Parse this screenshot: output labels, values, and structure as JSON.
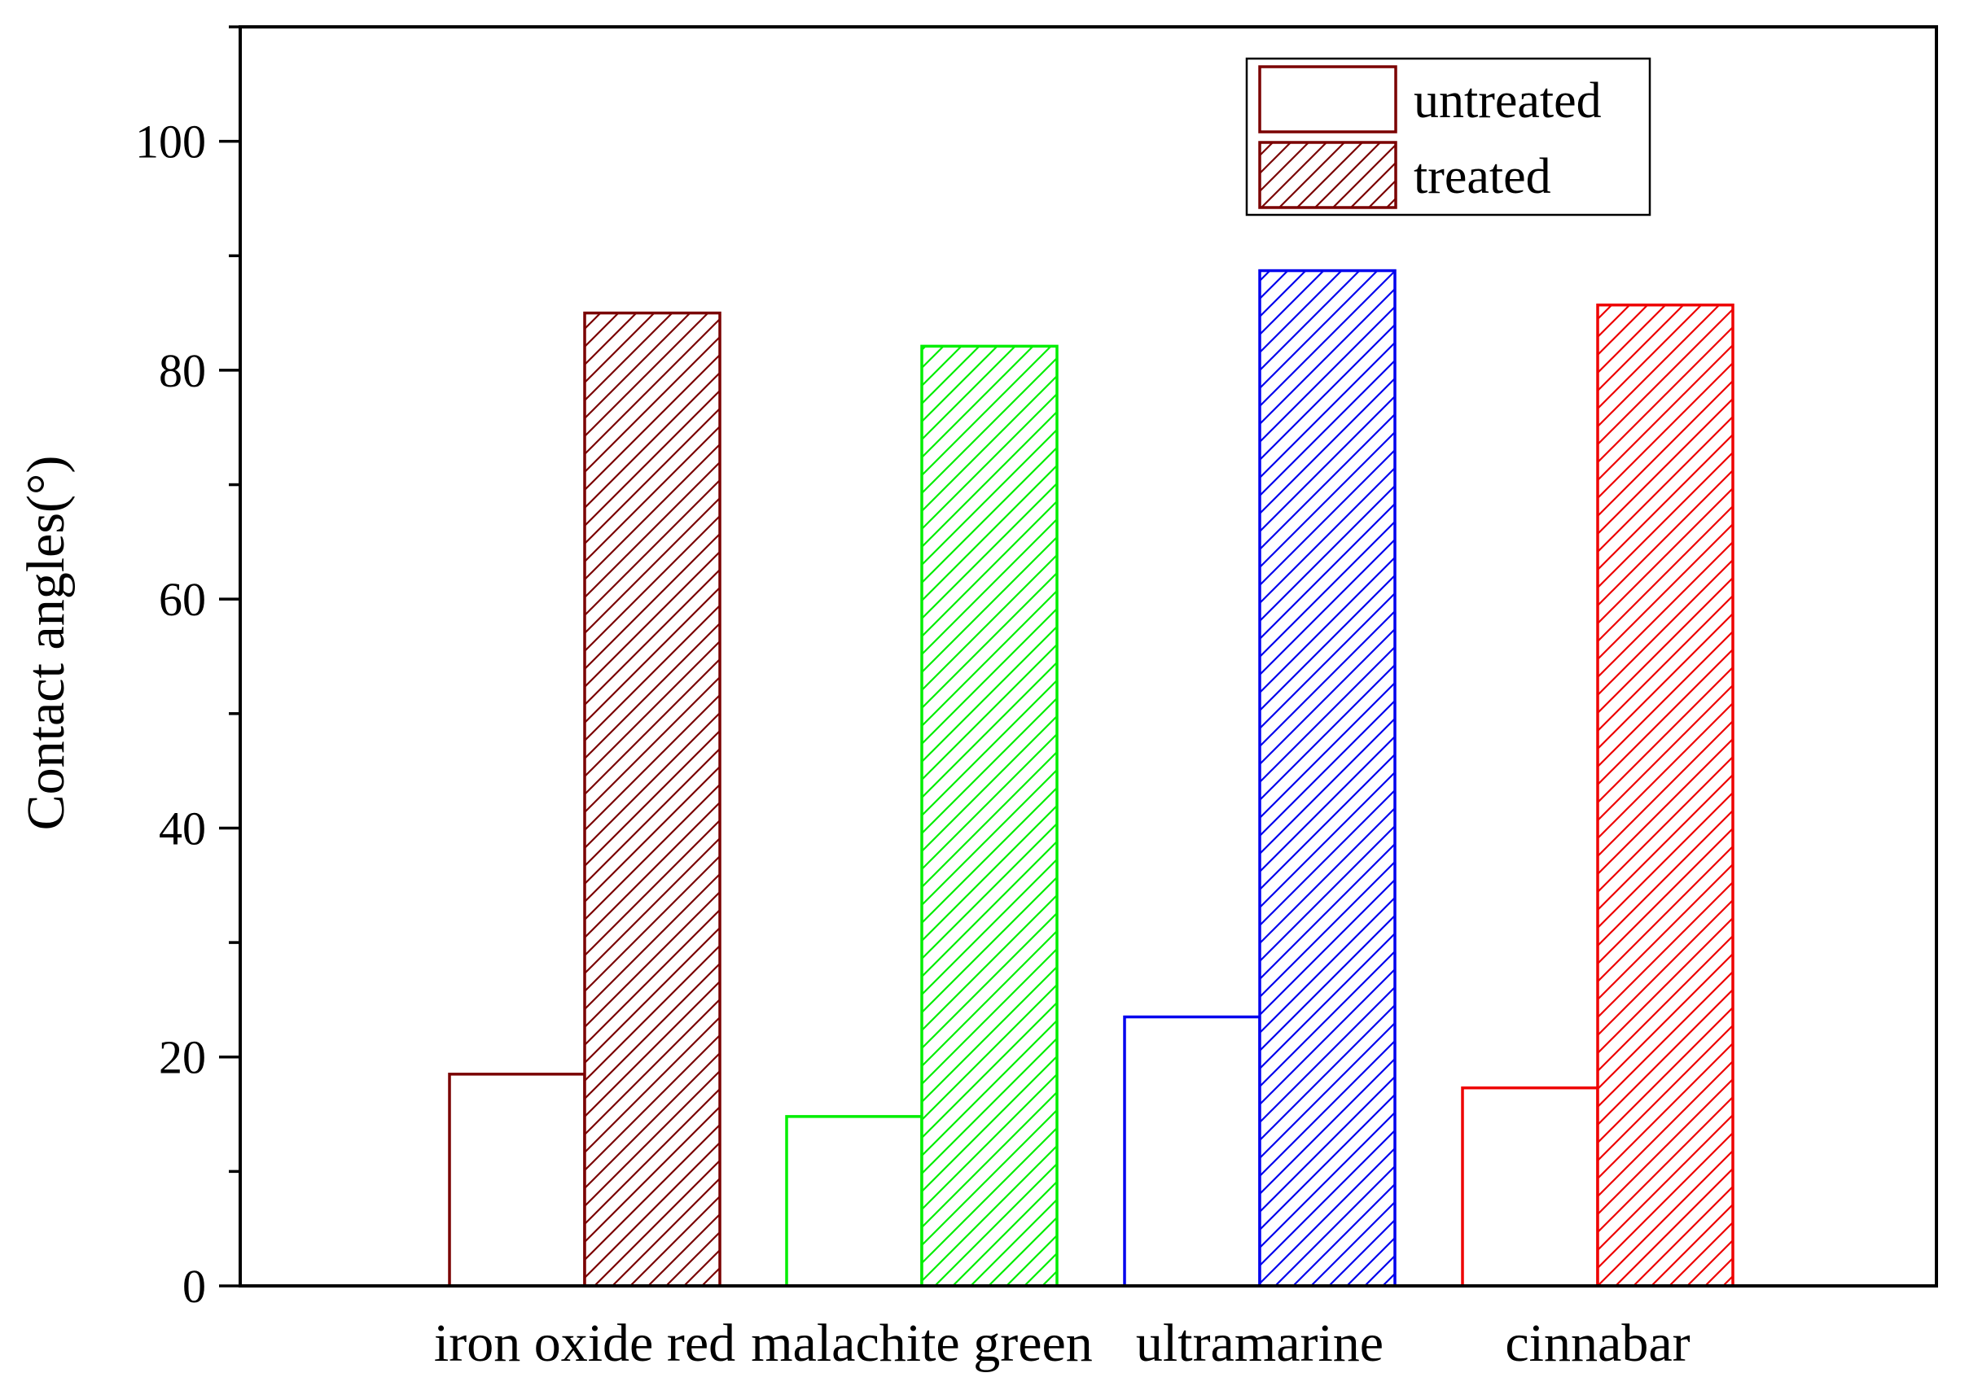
{
  "chart_data": {
    "type": "bar",
    "title": "",
    "xlabel": "",
    "ylabel": "Contact angles(°)",
    "ylim": [
      0,
      110
    ],
    "yticks": [
      0,
      20,
      40,
      60,
      80,
      100
    ],
    "y_minor_step": 10,
    "grid": false,
    "legend_position": "top-right",
    "categories": [
      "iron oxide red",
      "malachite green",
      "ultramarine",
      "cinnabar"
    ],
    "category_colors": [
      "#7a0000",
      "#00ee00",
      "#0000ee",
      "#ee0000"
    ],
    "series": [
      {
        "name": "untreated",
        "pattern": "none",
        "values": [
          18.5,
          14.8,
          23.5,
          17.3
        ]
      },
      {
        "name": "treated",
        "pattern": "hatch",
        "values": [
          85.0,
          82.1,
          88.7,
          85.7
        ]
      }
    ],
    "legend_color": "#7a0000"
  }
}
